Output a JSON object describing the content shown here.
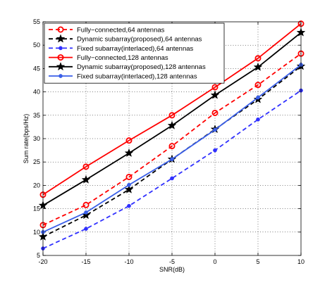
{
  "chart_data": {
    "type": "line",
    "title": "",
    "xlabel": "SNR(dB)",
    "ylabel": "Sum rate(bps/Hz)",
    "xlim": [
      -20,
      10
    ],
    "ylim": [
      5,
      55
    ],
    "x": [
      -20,
      -15,
      -10,
      -5,
      0,
      5,
      10
    ],
    "x_ticks": [
      "-20",
      "-15",
      "-10",
      "-5",
      "0",
      "5",
      "10"
    ],
    "y_ticks": [
      "5",
      "10",
      "15",
      "20",
      "25",
      "30",
      "35",
      "40",
      "45",
      "50",
      "55"
    ],
    "grid": true,
    "legend_position": "top-left",
    "series": [
      {
        "name": "Fully−connected,64 antennas",
        "color": "#ff0000",
        "dash": "dashed",
        "marker": "circle",
        "values": [
          11.5,
          15.8,
          21.8,
          28.4,
          35.5,
          41.5,
          48.2
        ]
      },
      {
        "name": "Dynamic subarray(proposed),64 antennas",
        "color": "#000000",
        "dash": "dashed",
        "marker": "star",
        "values": [
          9.0,
          13.6,
          19.1,
          25.6,
          32.0,
          38.4,
          45.5
        ]
      },
      {
        "name": "Fixed subarray(interlaced),64 antennas",
        "color": "#3030ff",
        "dash": "dashed",
        "marker": "dot",
        "values": [
          6.5,
          10.7,
          15.6,
          21.5,
          27.5,
          34.1,
          40.3
        ]
      },
      {
        "name": "Fully−connected,128 antennas",
        "color": "#ff0000",
        "dash": "solid",
        "marker": "circle",
        "values": [
          18.0,
          24.0,
          29.6,
          35.0,
          41.0,
          47.2,
          54.6
        ]
      },
      {
        "name": "Dynamic subarray(proposed),128 antennas",
        "color": "#000000",
        "dash": "solid",
        "marker": "star",
        "values": [
          15.7,
          21.2,
          26.9,
          32.8,
          39.3,
          45.3,
          52.7
        ]
      },
      {
        "name": "Fixed subarray(interlaced),128 antennas",
        "color": "#3a5fe8",
        "dash": "solid",
        "marker": "dot",
        "values": [
          10.0,
          14.2,
          20.1,
          25.6,
          31.9,
          38.8,
          45.8
        ]
      }
    ]
  }
}
